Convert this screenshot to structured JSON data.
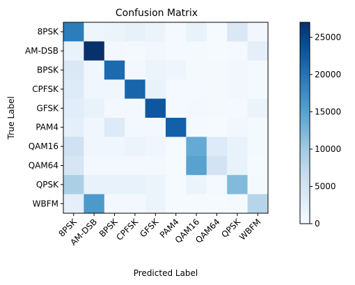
{
  "chart_data": {
    "type": "heatmap",
    "title": "Confusion Matrix",
    "xlabel": "Predicted Label",
    "ylabel": "True Label",
    "x_categories": [
      "8PSK",
      "AM-DSB",
      "BPSK",
      "CPFSK",
      "GFSK",
      "PAM4",
      "QAM16",
      "QAM64",
      "QPSK",
      "WBFM"
    ],
    "y_categories": [
      "8PSK",
      "AM-DSB",
      "BPSK",
      "CPFSK",
      "GFSK",
      "PAM4",
      "QAM16",
      "QAM64",
      "QPSK",
      "WBFM"
    ],
    "values": [
      [
        19000,
        1200,
        1500,
        2200,
        1500,
        400,
        2000,
        300,
        4000,
        800
      ],
      [
        2000,
        27000,
        600,
        400,
        800,
        500,
        400,
        300,
        500,
        2500
      ],
      [
        4000,
        1000,
        21000,
        600,
        1500,
        1200,
        400,
        400,
        800,
        400
      ],
      [
        3500,
        1000,
        1000,
        21500,
        2000,
        500,
        500,
        400,
        800,
        400
      ],
      [
        3000,
        2000,
        600,
        600,
        23000,
        400,
        600,
        400,
        500,
        1500
      ],
      [
        2500,
        1000,
        3500,
        600,
        600,
        22000,
        400,
        300,
        800,
        400
      ],
      [
        5500,
        1000,
        1000,
        1500,
        1000,
        300,
        14000,
        3500,
        2000,
        400
      ],
      [
        4500,
        700,
        700,
        700,
        700,
        300,
        15000,
        5000,
        2000,
        300
      ],
      [
        9000,
        2000,
        2000,
        2000,
        1500,
        300,
        1500,
        500,
        12000,
        400
      ],
      [
        2500,
        16000,
        700,
        700,
        1500,
        300,
        300,
        300,
        400,
        8000
      ]
    ],
    "vmin": 0,
    "vmax": 27000,
    "colormap": "Blues",
    "colorbar_ticks": [
      0,
      5000,
      10000,
      15000,
      20000,
      25000
    ]
  }
}
